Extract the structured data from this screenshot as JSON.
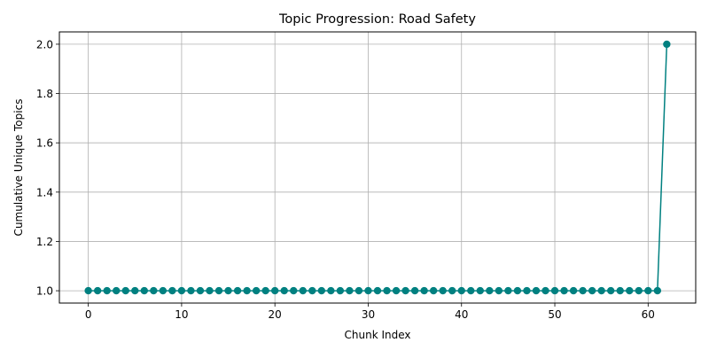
{
  "chart_data": {
    "type": "line",
    "title": "Topic Progression: Road Safety",
    "xlabel": "Chunk Index",
    "ylabel": "Cumulative Unique Topics",
    "xlim": [
      -3.1,
      65.1
    ],
    "ylim": [
      0.95,
      2.05
    ],
    "xticks": [
      0,
      10,
      20,
      30,
      40,
      50,
      60
    ],
    "xtick_labels": [
      "0",
      "10",
      "20",
      "30",
      "40",
      "50",
      "60"
    ],
    "yticks": [
      1.0,
      1.2,
      1.4,
      1.6,
      1.8,
      2.0
    ],
    "ytick_labels": [
      "1.0",
      "1.2",
      "1.4",
      "1.6",
      "1.8",
      "2.0"
    ],
    "grid": true,
    "marker": "circle",
    "line_color": "#008080",
    "series": [
      {
        "x": [
          0,
          1,
          2,
          3,
          4,
          5,
          6,
          7,
          8,
          9,
          10,
          11,
          12,
          13,
          14,
          15,
          16,
          17,
          18,
          19,
          20,
          21,
          22,
          23,
          24,
          25,
          26,
          27,
          28,
          29,
          30,
          31,
          32,
          33,
          34,
          35,
          36,
          37,
          38,
          39,
          40,
          41,
          42,
          43,
          44,
          45,
          46,
          47,
          48,
          49,
          50,
          51,
          52,
          53,
          54,
          55,
          56,
          57,
          58,
          59,
          60,
          61,
          62
        ],
        "values": [
          1,
          1,
          1,
          1,
          1,
          1,
          1,
          1,
          1,
          1,
          1,
          1,
          1,
          1,
          1,
          1,
          1,
          1,
          1,
          1,
          1,
          1,
          1,
          1,
          1,
          1,
          1,
          1,
          1,
          1,
          1,
          1,
          1,
          1,
          1,
          1,
          1,
          1,
          1,
          1,
          1,
          1,
          1,
          1,
          1,
          1,
          1,
          1,
          1,
          1,
          1,
          1,
          1,
          1,
          1,
          1,
          1,
          1,
          1,
          1,
          1,
          1,
          2
        ]
      }
    ]
  }
}
